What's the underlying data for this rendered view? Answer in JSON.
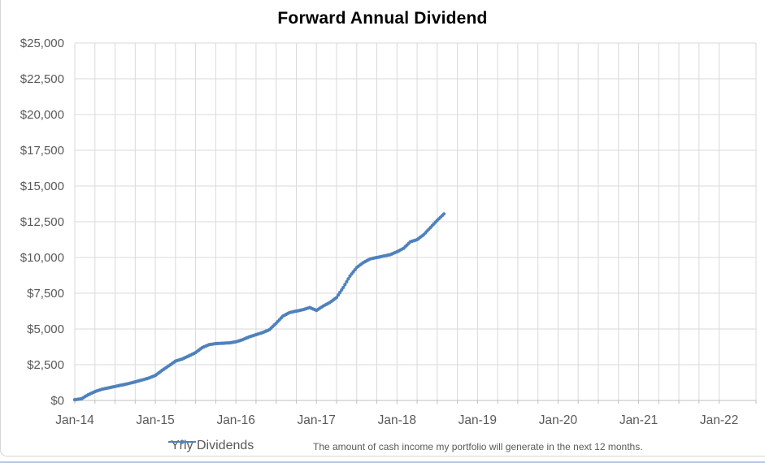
{
  "title": "Forward Annual Dividend",
  "legend": {
    "label": "Yrly Dividends"
  },
  "note": "The amount of cash income my portfolio will generate in the next 12 months.",
  "colors": {
    "series": "#4f81bd",
    "axis_text": "#595959",
    "grid": "#d9d9d9",
    "axis_line": "#bfbfbf",
    "title_text": "#000000",
    "frame_border": "#d6d6d6",
    "bottom_accent": "#b7c6e2"
  },
  "chart_data": {
    "type": "line",
    "title": "Forward Annual Dividend",
    "xlabel": "",
    "ylabel": "",
    "ylim": [
      0,
      25000
    ],
    "y_step": 2500,
    "y_tick_labels": [
      "$0",
      "$2,500",
      "$5,000",
      "$7,500",
      "$10,000",
      "$12,500",
      "$15,000",
      "$17,500",
      "$20,000",
      "$22,500",
      "$25,000"
    ],
    "x_tick_labels": [
      "Jan-14",
      "Jan-15",
      "Jan-16",
      "Jan-17",
      "Jan-18",
      "Jan-19",
      "Jan-20",
      "Jan-21",
      "Jan-22"
    ],
    "x_axis_total_months": 101.5,
    "minor_grid_every_months": 3,
    "grid": true,
    "legend_position": "bottom",
    "annotation": "The amount of cash income my portfolio will generate in the next 12 months.",
    "points_format": "[month-label, forward-annual-dividend-usd]",
    "series": [
      {
        "name": "Yrly Dividends",
        "color": "#4f81bd",
        "points": [
          [
            "Jan-14",
            50
          ],
          [
            "Feb-14",
            120
          ],
          [
            "Mar-14",
            400
          ],
          [
            "Apr-14",
            620
          ],
          [
            "May-14",
            780
          ],
          [
            "Jun-14",
            880
          ],
          [
            "Jul-14",
            980
          ],
          [
            "Aug-14",
            1080
          ],
          [
            "Sep-14",
            1180
          ],
          [
            "Oct-14",
            1300
          ],
          [
            "Nov-14",
            1430
          ],
          [
            "Dec-14",
            1560
          ],
          [
            "Jan-15",
            1750
          ],
          [
            "Feb-15",
            2100
          ],
          [
            "Mar-15",
            2420
          ],
          [
            "Apr-15",
            2750
          ],
          [
            "May-15",
            2900
          ],
          [
            "Jun-15",
            3120
          ],
          [
            "Jul-15",
            3350
          ],
          [
            "Aug-15",
            3700
          ],
          [
            "Sep-15",
            3900
          ],
          [
            "Oct-15",
            3980
          ],
          [
            "Nov-15",
            4000
          ],
          [
            "Dec-15",
            4030
          ],
          [
            "Jan-16",
            4100
          ],
          [
            "Feb-16",
            4250
          ],
          [
            "Mar-16",
            4450
          ],
          [
            "Apr-16",
            4600
          ],
          [
            "May-16",
            4750
          ],
          [
            "Jun-16",
            4950
          ],
          [
            "Jul-16",
            5400
          ],
          [
            "Aug-16",
            5900
          ],
          [
            "Sep-16",
            6150
          ],
          [
            "Oct-16",
            6250
          ],
          [
            "Nov-16",
            6350
          ],
          [
            "Dec-16",
            6500
          ],
          [
            "Jan-17",
            6300
          ],
          [
            "Feb-17",
            6600
          ],
          [
            "Mar-17",
            6850
          ],
          [
            "Apr-17",
            7200
          ],
          [
            "May-17",
            7900
          ],
          [
            "Jun-17",
            8700
          ],
          [
            "Jul-17",
            9300
          ],
          [
            "Aug-17",
            9650
          ],
          [
            "Sep-17",
            9900
          ],
          [
            "Oct-17",
            10000
          ],
          [
            "Nov-17",
            10100
          ],
          [
            "Dec-17",
            10200
          ],
          [
            "Jan-18",
            10400
          ],
          [
            "Feb-18",
            10650
          ],
          [
            "Mar-18",
            11100
          ],
          [
            "Apr-18",
            11250
          ],
          [
            "May-18",
            11600
          ],
          [
            "Jun-18",
            12100
          ],
          [
            "Jul-18",
            12600
          ],
          [
            "Aug-18",
            13050
          ]
        ]
      }
    ]
  }
}
